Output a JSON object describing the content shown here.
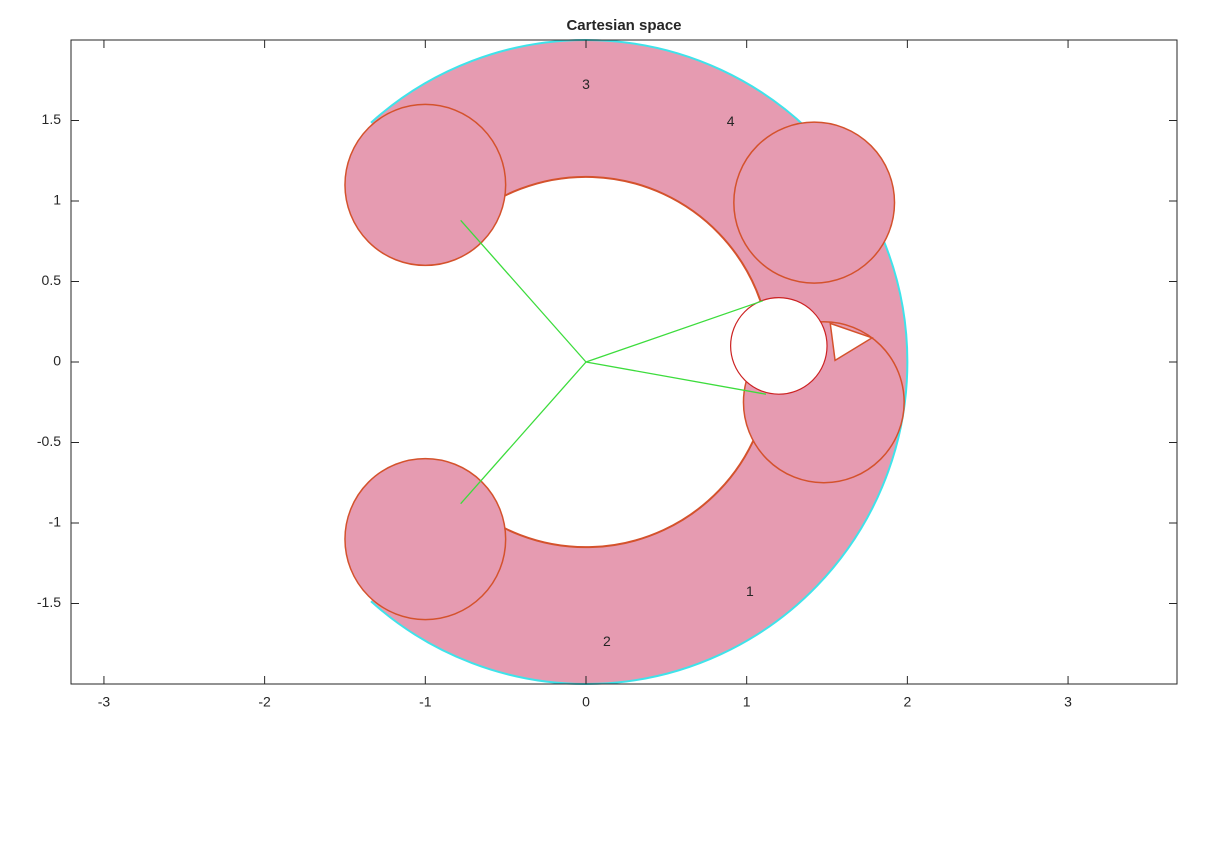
{
  "chart_data": {
    "type": "workspace",
    "title": "Cartesian space",
    "xlim": [
      -3.205,
      3.678
    ],
    "ylim": [
      -2,
      2
    ],
    "xticks": [
      -3,
      -2,
      -1,
      0,
      1,
      2,
      3
    ],
    "yticks": [
      -1.5,
      -1,
      -0.5,
      0,
      0.5,
      1,
      1.5
    ],
    "region_color": "#e69bb1",
    "edge_color": "#d4522c",
    "boundary_color": "#3fe3ea",
    "link_color": "#3cdc3c",
    "workspace": {
      "outer_radius": 2,
      "inner_radius": 1.15,
      "start_angle": 132,
      "end_angle": -132
    },
    "circles": [
      {
        "center": [
          -1,
          1.1
        ],
        "radius": 0.5
      },
      {
        "center": [
          -1,
          -1.1
        ],
        "radius": 0.5
      },
      {
        "center": [
          1.42,
          0.99
        ],
        "radius": 0.5
      },
      {
        "center": [
          1.48,
          -0.25
        ],
        "radius": 0.5
      }
    ],
    "obstacle": {
      "center": [
        1.2,
        0.1
      ],
      "radius": 0.3
    },
    "notch": [
      [
        1.52,
        0.24
      ],
      [
        1.78,
        0.15
      ],
      [
        1.55,
        0.01
      ]
    ],
    "links": [
      {
        "x": [
          0,
          -0.78
        ],
        "y": [
          0,
          0.88
        ]
      },
      {
        "x": [
          0,
          1.1
        ],
        "y": [
          0,
          0.38
        ]
      },
      {
        "x": [
          0,
          1.12
        ],
        "y": [
          0,
          -0.2
        ]
      },
      {
        "x": [
          0,
          -0.78
        ],
        "y": [
          0,
          -0.88
        ]
      }
    ],
    "annotations": [
      {
        "text": "3",
        "x": 0,
        "y": 1.72
      },
      {
        "text": "4",
        "x": 0.9,
        "y": 1.49
      },
      {
        "text": "1",
        "x": 1.02,
        "y": -1.43
      },
      {
        "text": "2",
        "x": 0.13,
        "y": -1.74
      }
    ]
  }
}
